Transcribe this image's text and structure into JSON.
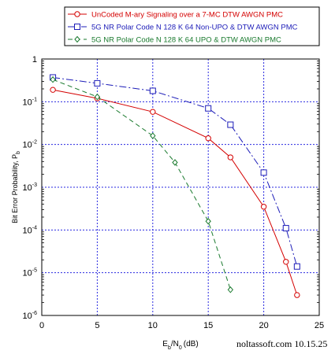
{
  "chart_data": {
    "type": "line",
    "xlabel_main": "E",
    "xlabel_sub1": "b",
    "xlabel_mid": "/N",
    "xlabel_sub2": "0",
    "xlabel_unit": "(dB)",
    "ylabel_main": "Bit Error Probability, P",
    "ylabel_sub": "b",
    "x_ticks": [
      "0",
      "5",
      "10",
      "15",
      "20",
      "25"
    ],
    "y_tick_labels": [
      {
        "base": "1",
        "exp": ""
      },
      {
        "base": "10",
        "exp": "-1"
      },
      {
        "base": "10",
        "exp": "-2"
      },
      {
        "base": "10",
        "exp": "-3"
      },
      {
        "base": "10",
        "exp": "-4"
      },
      {
        "base": "10",
        "exp": "-5"
      },
      {
        "base": "10",
        "exp": "-6"
      }
    ],
    "xlim": [
      0,
      25
    ],
    "ylim": [
      1e-06,
      1
    ],
    "yscale": "log",
    "grid": true,
    "legend_position": "top",
    "series": [
      {
        "name": "UnCoded M-ary Signaling over a 7-MC  DTW AWGN PMC",
        "color": "#d40000",
        "line": "solid",
        "marker": "circle",
        "x": [
          1,
          5,
          10,
          15,
          17,
          20,
          22,
          23
        ],
        "y": [
          0.19,
          0.12,
          0.058,
          0.014,
          0.005,
          0.00035,
          1.8e-05,
          3e-06
        ]
      },
      {
        "name": "5G NR Polar Code N 128 K 64 Non-UPO & DTW AWGN PMC",
        "color": "#1c1cb8",
        "line": "dashdot",
        "marker": "square",
        "x": [
          1,
          5,
          10,
          15,
          17,
          20,
          22,
          23
        ],
        "y": [
          0.37,
          0.27,
          0.18,
          0.07,
          0.029,
          0.0022,
          0.00011,
          1.4e-05
        ]
      },
      {
        "name": "5G NR Polar Code N 128 K 64 UPO & DTW AWGN PMC",
        "color": "#1a7a2e",
        "line": "dashed",
        "marker": "diamond",
        "x": [
          1,
          5,
          10,
          12,
          15,
          17
        ],
        "y": [
          0.33,
          0.13,
          0.016,
          0.0038,
          0.00016,
          4e-06
        ]
      }
    ]
  },
  "footer_text": "noltassoft.com 10.15.25"
}
